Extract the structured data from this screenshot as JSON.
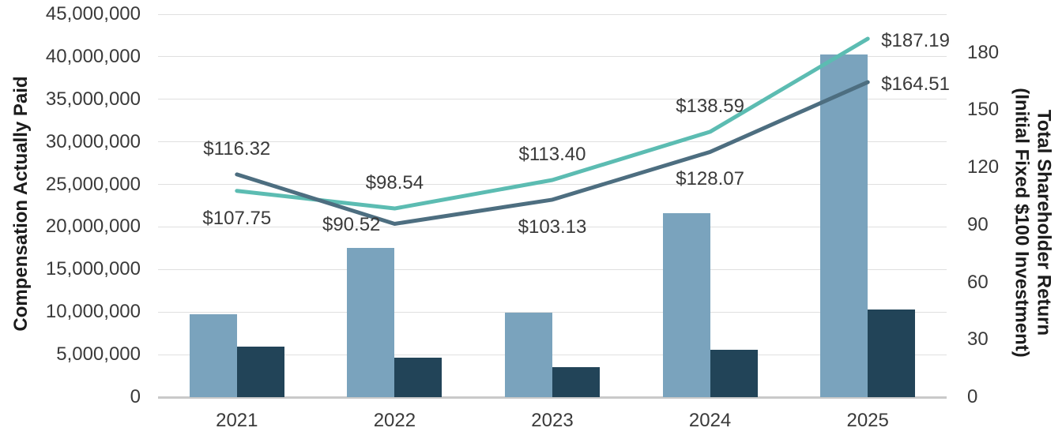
{
  "chart_data": {
    "type": "combo-bar-line",
    "categories": [
      "2021",
      "2022",
      "2023",
      "2024",
      "2025"
    ],
    "left_axis": {
      "label": "Compensation Actually Paid",
      "min": 0,
      "max": 45000000,
      "tick_step": 5000000,
      "tick_labels": [
        "0",
        "5,000,000",
        "10,000,000",
        "15,000,000",
        "20,000,000",
        "25,000,000",
        "30,000,000",
        "35,000,000",
        "40,000,000",
        "45,000,000"
      ]
    },
    "right_axis": {
      "label_line1": "Total Shareholder Return",
      "label_line2": "(Initial Fixed $100 Investment)",
      "min": 0,
      "max": 200,
      "tick_step": 30,
      "tick_labels": [
        "0",
        "30",
        "60",
        "90",
        "120",
        "150",
        "180"
      ]
    },
    "grid_on": true,
    "colors": {
      "light_blue_bar": "#7aa3bd",
      "dark_navy_bar": "#224458",
      "teal_line": "#5cbcb2",
      "slate_line": "#4d6e80",
      "gridline": "#e0e0e0",
      "baseline": "#c9c9c9",
      "text": "#3a3a3a"
    },
    "bar_series": [
      {
        "name": "light-blue-bars",
        "axis": "left",
        "color_key": "light_blue_bar",
        "values": [
          9700000,
          17500000,
          9900000,
          21600000,
          40300000
        ]
      },
      {
        "name": "dark-navy-bars",
        "axis": "left",
        "color_key": "dark_navy_bar",
        "values": [
          5900000,
          4600000,
          3500000,
          5600000,
          10300000
        ]
      }
    ],
    "line_series": [
      {
        "name": "teal-line",
        "axis": "right",
        "color_key": "teal_line",
        "values": [
          107.75,
          98.54,
          113.4,
          138.59,
          187.19
        ],
        "point_labels": [
          "$107.75",
          "$98.54",
          "$113.40",
          "$138.59",
          "$187.19"
        ],
        "label_placements": [
          "below",
          "above",
          "above",
          "above",
          "right"
        ]
      },
      {
        "name": "slate-line",
        "axis": "right",
        "color_key": "slate_line",
        "values": [
          116.32,
          90.52,
          103.13,
          128.07,
          164.51
        ],
        "point_labels": [
          "$116.32",
          "$90.52",
          "$103.13",
          "$128.07",
          "$164.51"
        ],
        "label_placements": [
          "above",
          "left",
          "below",
          "below",
          "right"
        ]
      }
    ]
  }
}
